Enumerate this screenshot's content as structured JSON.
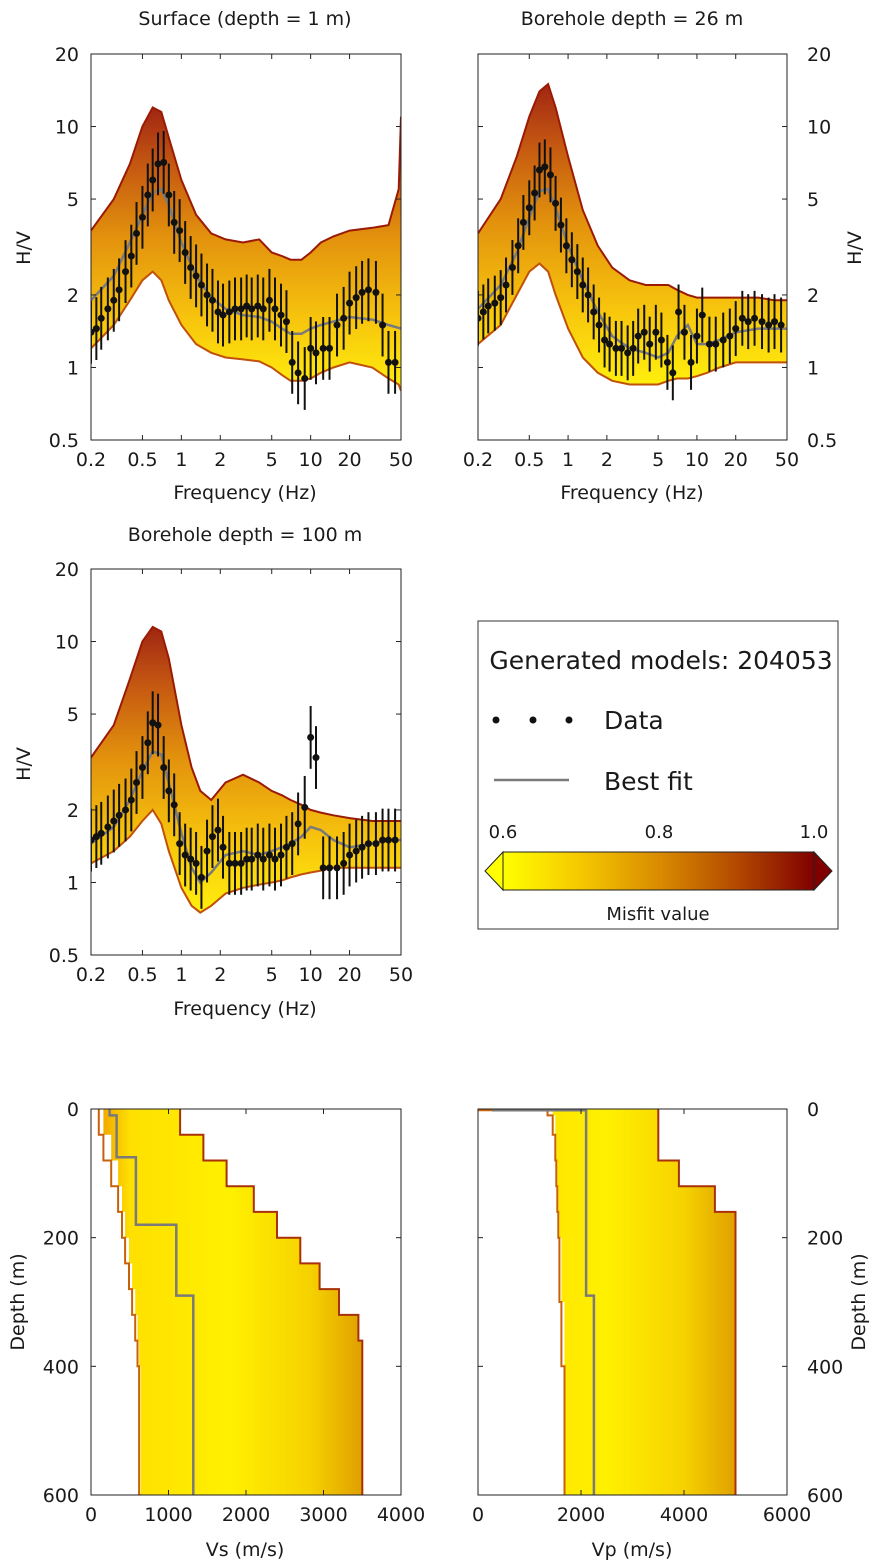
{
  "legend": {
    "title": "Generated models: 204053",
    "data_label": "Data",
    "bestfit_label": "Best fit",
    "colorbar_ticks": [
      "0.6",
      "0.8",
      "1.0"
    ],
    "colorbar_label": "Misfit value",
    "colorbar_colors": [
      "#ffff00",
      "#f5c800",
      "#d98c00",
      "#b34a00",
      "#800000"
    ]
  },
  "colors": {
    "data": "#111111",
    "best_fit": "#7a7a7a",
    "envelope_low": "#ffee00",
    "envelope_high": "#9b1a05"
  },
  "chart_data": [
    {
      "type": "line",
      "title": "Surface (depth = 1 m)",
      "xlabel": "Frequency (Hz)",
      "ylabel": "H/V",
      "xscale": "log",
      "yscale": "log",
      "xlim": [
        0.2,
        50
      ],
      "ylim": [
        0.5,
        20
      ],
      "xticks": [
        "0.2",
        "0.5",
        "1",
        "2",
        "5",
        "10",
        "20",
        "50"
      ],
      "yticks": [
        "0.5",
        "1",
        "2",
        "5",
        "10",
        "20"
      ],
      "ylabel_side": "left",
      "data": {
        "f": [
          0.2,
          0.22,
          0.24,
          0.27,
          0.3,
          0.33,
          0.37,
          0.41,
          0.45,
          0.5,
          0.55,
          0.6,
          0.66,
          0.73,
          0.8,
          0.88,
          0.97,
          1.07,
          1.18,
          1.3,
          1.43,
          1.58,
          1.74,
          1.92,
          2.1,
          2.35,
          2.6,
          2.9,
          3.2,
          3.5,
          3.9,
          4.3,
          4.8,
          5.3,
          5.9,
          6.5,
          7.2,
          8.0,
          9.0,
          10.0,
          11.0,
          12.5,
          14.0,
          16.0,
          18.0,
          20.0,
          22.5,
          25.0,
          28.0,
          32.0,
          36.0,
          40.0,
          45.0
        ],
        "hv": [
          1.4,
          1.45,
          1.6,
          1.75,
          1.9,
          2.1,
          2.5,
          2.9,
          3.6,
          4.2,
          5.2,
          6.0,
          7.0,
          7.1,
          5.2,
          4.0,
          3.7,
          3.0,
          2.6,
          2.4,
          2.2,
          2.0,
          1.9,
          1.7,
          1.65,
          1.7,
          1.75,
          1.75,
          1.8,
          1.75,
          1.8,
          1.75,
          1.9,
          1.75,
          1.65,
          1.55,
          1.05,
          0.95,
          0.9,
          1.2,
          1.15,
          1.2,
          1.2,
          1.5,
          1.6,
          1.85,
          1.95,
          2.05,
          2.1,
          2.05,
          1.5,
          1.05,
          1.05
        ],
        "err_factor": 1.35
      },
      "best_fit": {
        "f": [
          0.2,
          0.3,
          0.4,
          0.5,
          0.6,
          0.7,
          0.8,
          1.0,
          1.3,
          1.7,
          2.2,
          3.0,
          4.0,
          5.0,
          6.0,
          7.0,
          8.5,
          10.0,
          12.0,
          15.0,
          20.0,
          30.0,
          40.0,
          50.0
        ],
        "hv": [
          1.9,
          2.4,
          3.3,
          4.3,
          5.3,
          5.5,
          4.7,
          3.3,
          2.4,
          1.95,
          1.75,
          1.65,
          1.62,
          1.55,
          1.45,
          1.38,
          1.38,
          1.45,
          1.5,
          1.55,
          1.62,
          1.58,
          1.5,
          1.45
        ]
      },
      "envelope": {
        "f": [
          0.2,
          0.3,
          0.4,
          0.5,
          0.6,
          0.7,
          0.8,
          1.0,
          1.3,
          1.7,
          2.2,
          3.0,
          4.0,
          5.0,
          6.0,
          7.0,
          8.5,
          10.0,
          12.0,
          15.0,
          20.0,
          30.0,
          40.0,
          48.0,
          50.0
        ],
        "low": [
          1.2,
          1.5,
          1.9,
          2.3,
          2.5,
          2.3,
          1.9,
          1.5,
          1.25,
          1.15,
          1.1,
          1.08,
          1.06,
          1.0,
          0.93,
          0.88,
          0.88,
          0.9,
          0.95,
          1.0,
          1.05,
          1.0,
          0.9,
          0.85,
          0.8
        ],
        "high": [
          3.7,
          5.0,
          7.0,
          10.0,
          12.0,
          11.5,
          9.0,
          6.0,
          4.3,
          3.6,
          3.4,
          3.3,
          3.4,
          3.0,
          2.9,
          2.8,
          2.8,
          3.0,
          3.3,
          3.5,
          3.7,
          3.8,
          3.9,
          5.5,
          11.0
        ]
      }
    },
    {
      "type": "line",
      "title": "Borehole depth = 26 m",
      "xlabel": "Frequency (Hz)",
      "ylabel": "H/V",
      "xscale": "log",
      "yscale": "log",
      "xlim": [
        0.2,
        50
      ],
      "ylim": [
        0.5,
        20
      ],
      "xticks": [
        "0.2",
        "0.5",
        "1",
        "2",
        "5",
        "10",
        "20",
        "50"
      ],
      "yticks": [
        "0.5",
        "1",
        "2",
        "5",
        "10",
        "20"
      ],
      "ylabel_side": "right",
      "data": {
        "f": [
          0.2,
          0.22,
          0.24,
          0.27,
          0.3,
          0.33,
          0.37,
          0.41,
          0.45,
          0.5,
          0.55,
          0.6,
          0.66,
          0.73,
          0.8,
          0.88,
          0.97,
          1.07,
          1.18,
          1.3,
          1.43,
          1.58,
          1.74,
          1.92,
          2.1,
          2.35,
          2.6,
          2.9,
          3.2,
          3.5,
          3.9,
          4.3,
          4.8,
          5.3,
          5.9,
          6.5,
          7.2,
          8.0,
          9.0,
          10.0,
          11.0,
          12.5,
          14.0,
          16.0,
          18.0,
          20.0,
          22.5,
          25.0,
          28.0,
          32.0,
          36.0,
          40.0,
          45.0
        ],
        "hv": [
          1.6,
          1.7,
          1.8,
          1.85,
          1.95,
          2.2,
          2.6,
          3.2,
          4.0,
          4.6,
          5.3,
          6.6,
          6.8,
          6.3,
          4.8,
          3.9,
          3.2,
          2.8,
          2.5,
          2.2,
          2.0,
          1.7,
          1.5,
          1.3,
          1.25,
          1.2,
          1.2,
          1.15,
          1.2,
          1.35,
          1.4,
          1.25,
          1.4,
          1.3,
          1.05,
          0.95,
          1.7,
          1.4,
          1.05,
          1.35,
          1.65,
          1.25,
          1.25,
          1.3,
          1.35,
          1.45,
          1.6,
          1.55,
          1.6,
          1.55,
          1.5,
          1.55,
          1.5
        ],
        "err_factor": 1.3
      },
      "best_fit": {
        "f": [
          0.2,
          0.3,
          0.4,
          0.5,
          0.6,
          0.7,
          0.8,
          1.0,
          1.3,
          1.7,
          2.2,
          3.0,
          4.0,
          5.0,
          6.0,
          7.0,
          8.5,
          10.0,
          12.0,
          15.0,
          20.0,
          30.0,
          40.0,
          50.0
        ],
        "hv": [
          1.75,
          2.2,
          3.0,
          4.2,
          5.4,
          5.5,
          4.6,
          3.2,
          2.3,
          1.7,
          1.35,
          1.2,
          1.15,
          1.1,
          1.15,
          1.35,
          1.5,
          1.25,
          1.25,
          1.3,
          1.4,
          1.45,
          1.45,
          1.45
        ]
      },
      "envelope": {
        "f": [
          0.2,
          0.3,
          0.4,
          0.5,
          0.6,
          0.7,
          0.8,
          1.0,
          1.3,
          1.7,
          2.2,
          3.0,
          4.0,
          5.0,
          6.0,
          7.0,
          8.5,
          10.0,
          12.0,
          15.0,
          20.0,
          30.0,
          40.0,
          50.0
        ],
        "low": [
          1.25,
          1.5,
          2.0,
          2.5,
          2.7,
          2.5,
          2.0,
          1.45,
          1.1,
          0.95,
          0.88,
          0.85,
          0.85,
          0.85,
          0.88,
          0.9,
          0.9,
          0.92,
          0.95,
          1.0,
          1.05,
          1.05,
          1.05,
          1.05
        ],
        "high": [
          3.6,
          5.0,
          7.5,
          11.0,
          14.0,
          15.0,
          12.0,
          7.5,
          4.5,
          3.2,
          2.6,
          2.3,
          2.2,
          2.2,
          2.2,
          2.1,
          2.0,
          1.95,
          1.95,
          1.95,
          1.95,
          1.95,
          1.9,
          1.9
        ]
      }
    },
    {
      "type": "line",
      "title": "Borehole depth = 100 m",
      "xlabel": "Frequency (Hz)",
      "ylabel": "H/V",
      "xscale": "log",
      "yscale": "log",
      "xlim": [
        0.2,
        50
      ],
      "ylim": [
        0.5,
        20
      ],
      "xticks": [
        "0.2",
        "0.5",
        "1",
        "2",
        "5",
        "10",
        "20",
        "50"
      ],
      "yticks": [
        "0.5",
        "1",
        "2",
        "5",
        "10",
        "20"
      ],
      "ylabel_side": "left",
      "data": {
        "f": [
          0.2,
          0.22,
          0.24,
          0.27,
          0.3,
          0.33,
          0.37,
          0.41,
          0.45,
          0.5,
          0.55,
          0.6,
          0.66,
          0.73,
          0.8,
          0.88,
          0.97,
          1.07,
          1.18,
          1.3,
          1.43,
          1.58,
          1.74,
          1.92,
          2.1,
          2.35,
          2.6,
          2.9,
          3.2,
          3.5,
          3.9,
          4.3,
          4.8,
          5.3,
          5.9,
          6.5,
          7.2,
          8.0,
          9.0,
          10.0,
          11.0,
          12.5,
          14.0,
          16.0,
          18.0,
          20.0,
          22.5,
          25.0,
          28.0,
          32.0,
          36.0,
          40.0,
          45.0
        ],
        "hv": [
          1.5,
          1.55,
          1.6,
          1.7,
          1.8,
          1.9,
          2.0,
          2.2,
          2.6,
          3.0,
          3.8,
          4.6,
          4.5,
          3.0,
          2.4,
          2.1,
          1.45,
          1.3,
          1.25,
          1.2,
          1.05,
          1.35,
          1.55,
          1.65,
          1.4,
          1.2,
          1.2,
          1.2,
          1.25,
          1.25,
          1.3,
          1.25,
          1.3,
          1.25,
          1.3,
          1.4,
          1.45,
          1.75,
          2.05,
          4.0,
          3.3,
          1.15,
          1.15,
          1.15,
          1.2,
          1.3,
          1.35,
          1.4,
          1.45,
          1.45,
          1.5,
          1.5,
          1.5
        ],
        "err_factor": 1.35
      },
      "best_fit": {
        "f": [
          0.2,
          0.3,
          0.4,
          0.5,
          0.6,
          0.7,
          0.8,
          1.0,
          1.2,
          1.4,
          1.7,
          2.2,
          3.0,
          4.0,
          5.0,
          6.0,
          7.0,
          8.5,
          10.0,
          12.0,
          15.0,
          20.0,
          30.0,
          40.0,
          50.0
        ],
        "hv": [
          1.45,
          1.7,
          2.2,
          2.9,
          3.5,
          3.4,
          2.6,
          1.6,
          1.15,
          1.0,
          1.1,
          1.3,
          1.35,
          1.3,
          1.35,
          1.4,
          1.45,
          1.55,
          1.7,
          1.65,
          1.5,
          1.4,
          1.45,
          1.5,
          1.5
        ]
      },
      "envelope": {
        "f": [
          0.2,
          0.3,
          0.4,
          0.5,
          0.6,
          0.7,
          0.8,
          1.0,
          1.2,
          1.4,
          1.7,
          2.2,
          3.0,
          4.0,
          5.0,
          6.0,
          7.0,
          8.5,
          10.0,
          12.0,
          15.0,
          20.0,
          30.0,
          40.0,
          50.0
        ],
        "low": [
          1.2,
          1.35,
          1.55,
          1.8,
          2.0,
          1.75,
          1.35,
          0.95,
          0.8,
          0.75,
          0.8,
          0.9,
          0.95,
          0.98,
          1.0,
          1.02,
          1.05,
          1.08,
          1.1,
          1.12,
          1.15,
          1.15,
          1.15,
          1.15,
          1.15
        ],
        "high": [
          3.3,
          4.5,
          7.0,
          10.0,
          11.5,
          11.0,
          8.5,
          4.5,
          3.0,
          2.4,
          2.2,
          2.6,
          2.8,
          2.6,
          2.4,
          2.3,
          2.2,
          2.1,
          2.0,
          1.95,
          1.9,
          1.85,
          1.8,
          1.8,
          1.8
        ]
      }
    },
    {
      "type": "line",
      "title": "",
      "xlabel": "Vs (m/s)",
      "ylabel": "Depth (m)",
      "xlim": [
        0,
        4000
      ],
      "ylim": [
        600,
        0
      ],
      "xticks": [
        "0",
        "1000",
        "2000",
        "3000",
        "4000"
      ],
      "yticks": [
        "0",
        "200",
        "400",
        "600"
      ],
      "ylabel_side": "left",
      "best_fit": {
        "depth": [
          0,
          10,
          10,
          75,
          75,
          180,
          180,
          290,
          290,
          600
        ],
        "vel": [
          240,
          240,
          330,
          330,
          580,
          580,
          1100,
          1100,
          1320,
          1320
        ]
      },
      "envelope": {
        "depth": [
          0,
          40,
          80,
          120,
          160,
          200,
          240,
          280,
          320,
          360,
          400,
          600
        ],
        "min": [
          100,
          160,
          260,
          350,
          400,
          440,
          490,
          530,
          570,
          600,
          620,
          640
        ],
        "max": [
          1150,
          1450,
          1750,
          2100,
          2400,
          2700,
          2950,
          3200,
          3450,
          3500,
          3500,
          3500
        ]
      }
    },
    {
      "type": "line",
      "title": "",
      "xlabel": "Vp (m/s)",
      "ylabel": "Depth (m)",
      "xlim": [
        0,
        6000
      ],
      "ylim": [
        600,
        0
      ],
      "xticks": [
        "0",
        "2000",
        "4000",
        "6000"
      ],
      "yticks": [
        "0",
        "200",
        "400",
        "600"
      ],
      "ylabel_side": "right",
      "best_fit": {
        "depth": [
          0,
          2,
          2,
          290,
          290,
          600
        ],
        "vel": [
          300,
          300,
          2100,
          2100,
          2250,
          2250
        ]
      },
      "envelope": {
        "depth": [
          0,
          2,
          10,
          40,
          80,
          120,
          160,
          200,
          300,
          400,
          600
        ],
        "min": [
          0,
          1350,
          1450,
          1500,
          1520,
          1540,
          1560,
          1580,
          1620,
          1680,
          1700
        ],
        "max": [
          3500,
          3500,
          3500,
          3500,
          3900,
          4600,
          5000,
          5000,
          5000,
          5000,
          5000
        ]
      }
    }
  ]
}
